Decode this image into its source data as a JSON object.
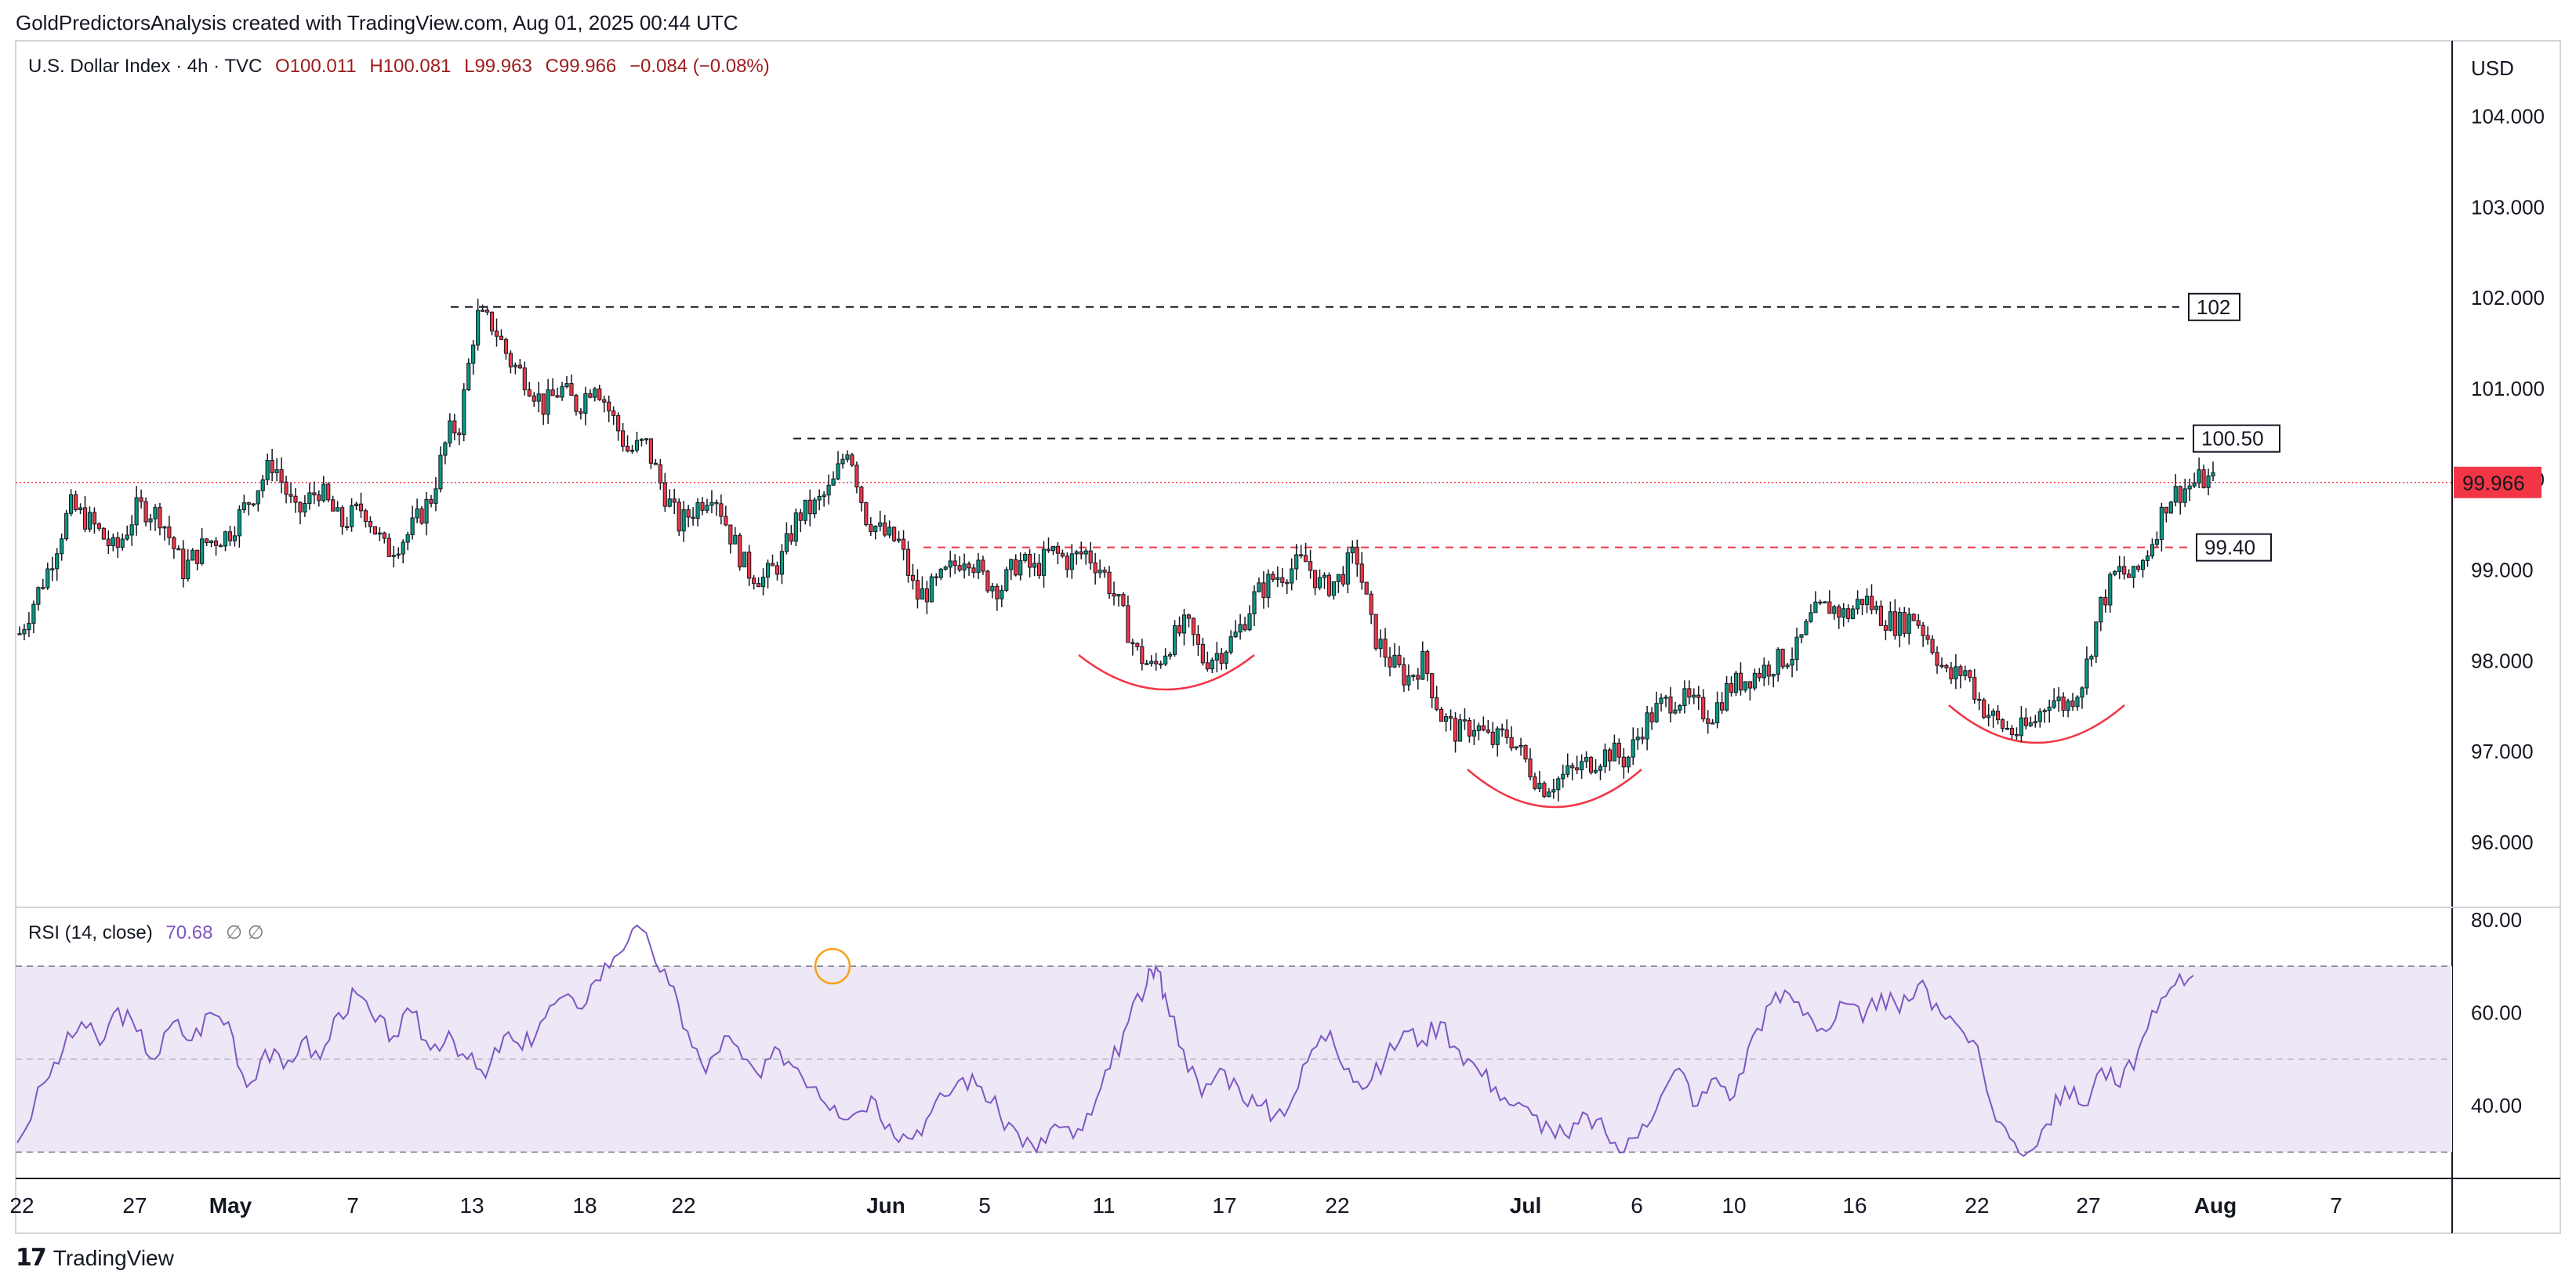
{
  "header": {
    "attribution": "GoldPredictorsAnalysis created with TradingView.com, Aug 01, 2025 00:44 UTC"
  },
  "footer": {
    "logo_mark": "17",
    "logo_name": "TradingView"
  },
  "chart_data": {
    "type": "candlestick",
    "symbol": "U.S. Dollar Index",
    "interval": "4h",
    "source": "TVC",
    "ohlc_label": {
      "o": "O100.011",
      "h": "H100.081",
      "l": "L99.963",
      "c": "C99.966",
      "chg": "−0.084 (−0.08%)"
    },
    "currency_label": "USD",
    "last_price": "99.966",
    "y_ticks": [
      "104.000",
      "103.000",
      "102.000",
      "101.000",
      "100.000",
      "99.000",
      "98.000",
      "97.000",
      "96.000"
    ],
    "ylim": [
      95.3,
      104.8
    ],
    "x_ticks": [
      "22",
      "27",
      "May",
      "7",
      "13",
      "18",
      "22",
      "Jun",
      "5",
      "11",
      "17",
      "22",
      "Jul",
      "6",
      "10",
      "16",
      "22",
      "27",
      "Aug",
      "7"
    ],
    "month_ticks": [
      "May",
      "Jun",
      "Jul",
      "Aug"
    ],
    "levels": [
      {
        "label": "102",
        "value": 101.9,
        "color": "#131722",
        "style": "dashed"
      },
      {
        "label": "100.50",
        "value": 100.45,
        "color": "#131722",
        "style": "dashed"
      },
      {
        "label": "99.40",
        "value": 99.25,
        "color": "#f23645",
        "style": "dashed"
      }
    ],
    "price_path": [
      [
        0,
        98.3
      ],
      [
        10,
        99.0
      ],
      [
        18,
        99.7
      ],
      [
        26,
        99.5
      ],
      [
        34,
        99.2
      ],
      [
        42,
        99.7
      ],
      [
        50,
        99.6
      ],
      [
        58,
        99.0
      ],
      [
        66,
        99.3
      ],
      [
        74,
        99.4
      ],
      [
        82,
        99.8
      ],
      [
        90,
        100.2
      ],
      [
        98,
        99.6
      ],
      [
        106,
        99.9
      ],
      [
        114,
        99.5
      ],
      [
        122,
        99.7
      ],
      [
        130,
        99.2
      ],
      [
        138,
        99.4
      ],
      [
        146,
        99.8
      ],
      [
        152,
        100.5
      ],
      [
        156,
        100.6
      ],
      [
        162,
        101.8
      ],
      [
        168,
        101.7
      ],
      [
        174,
        101.3
      ],
      [
        180,
        101.1
      ],
      [
        186,
        100.8
      ],
      [
        192,
        101.0
      ],
      [
        198,
        100.8
      ],
      [
        204,
        101.1
      ],
      [
        210,
        100.7
      ],
      [
        216,
        100.3
      ],
      [
        222,
        100.4
      ],
      [
        228,
        99.9
      ],
      [
        234,
        99.5
      ],
      [
        240,
        99.7
      ],
      [
        246,
        99.9
      ],
      [
        252,
        99.4
      ],
      [
        258,
        99.0
      ],
      [
        264,
        98.9
      ],
      [
        270,
        99.1
      ],
      [
        276,
        99.6
      ],
      [
        282,
        99.7
      ],
      [
        288,
        99.9
      ],
      [
        294,
        100.4
      ],
      [
        300,
        99.6
      ],
      [
        306,
        99.4
      ],
      [
        312,
        99.3
      ],
      [
        318,
        98.7
      ],
      [
        324,
        98.8
      ],
      [
        330,
        99.0
      ],
      [
        336,
        99.2
      ],
      [
        342,
        98.9
      ],
      [
        348,
        98.8
      ],
      [
        354,
        99.1
      ],
      [
        360,
        99.0
      ],
      [
        366,
        99.2
      ],
      [
        372,
        99.1
      ],
      [
        378,
        99.2
      ],
      [
        384,
        99.0
      ],
      [
        390,
        98.6
      ],
      [
        396,
        98.1
      ],
      [
        402,
        97.9
      ],
      [
        408,
        98.2
      ],
      [
        414,
        98.4
      ],
      [
        420,
        98.0
      ],
      [
        426,
        98.1
      ],
      [
        432,
        98.3
      ],
      [
        438,
        98.7
      ],
      [
        444,
        98.9
      ],
      [
        450,
        99.0
      ],
      [
        456,
        99.1
      ],
      [
        462,
        98.8
      ],
      [
        468,
        98.9
      ],
      [
        474,
        99.2
      ],
      [
        480,
        98.3
      ],
      [
        486,
        98.0
      ],
      [
        492,
        97.8
      ],
      [
        498,
        98.0
      ],
      [
        504,
        97.4
      ],
      [
        510,
        97.2
      ],
      [
        516,
        97.3
      ],
      [
        522,
        97.1
      ],
      [
        528,
        97.2
      ],
      [
        534,
        96.9
      ],
      [
        540,
        96.6
      ],
      [
        546,
        96.7
      ],
      [
        552,
        96.8
      ],
      [
        558,
        96.9
      ],
      [
        564,
        97.0
      ],
      [
        570,
        96.9
      ],
      [
        576,
        97.3
      ],
      [
        582,
        97.5
      ],
      [
        588,
        97.6
      ],
      [
        594,
        97.5
      ],
      [
        600,
        97.4
      ],
      [
        606,
        97.7
      ],
      [
        612,
        97.8
      ],
      [
        618,
        97.9
      ],
      [
        624,
        98.0
      ],
      [
        630,
        98.1
      ],
      [
        636,
        98.5
      ],
      [
        642,
        98.6
      ],
      [
        648,
        98.5
      ],
      [
        654,
        98.7
      ],
      [
        660,
        98.5
      ],
      [
        666,
        98.4
      ],
      [
        672,
        98.5
      ],
      [
        678,
        98.2
      ],
      [
        684,
        97.8
      ],
      [
        690,
        97.9
      ],
      [
        696,
        97.5
      ],
      [
        702,
        97.3
      ],
      [
        708,
        97.2
      ],
      [
        714,
        97.3
      ],
      [
        720,
        97.6
      ],
      [
        726,
        97.5
      ],
      [
        732,
        97.8
      ],
      [
        738,
        98.6
      ],
      [
        744,
        99.0
      ],
      [
        750,
        98.9
      ],
      [
        756,
        99.3
      ],
      [
        762,
        99.8
      ],
      [
        768,
        99.9
      ],
      [
        774,
        100.0
      ],
      [
        778,
        99.97
      ]
    ],
    "rsi": {
      "label": "RSI (14, close)",
      "value": "70.68",
      "extra": "∅ ∅",
      "y_ticks": [
        "80.00",
        "60.00",
        "40.00"
      ],
      "ylim": [
        25,
        82
      ],
      "upper_band": 70,
      "middle_band": 50,
      "lower_band": 30,
      "color": "#7e57c2",
      "band_fill": "#ede7f6",
      "values": [
        [
          0,
          32
        ],
        [
          6,
          45
        ],
        [
          10,
          52
        ],
        [
          14,
          58
        ],
        [
          18,
          53
        ],
        [
          22,
          61
        ],
        [
          26,
          56
        ],
        [
          30,
          50
        ],
        [
          34,
          58
        ],
        [
          38,
          54
        ],
        [
          42,
          60
        ],
        [
          46,
          58
        ],
        [
          50,
          44
        ],
        [
          54,
          52
        ],
        [
          58,
          48
        ],
        [
          62,
          54
        ],
        [
          66,
          50
        ],
        [
          70,
          60
        ],
        [
          74,
          64
        ],
        [
          78,
          58
        ],
        [
          82,
          55
        ],
        [
          86,
          60
        ],
        [
          90,
          52
        ],
        [
          94,
          56
        ],
        [
          98,
          50
        ],
        [
          102,
          46
        ],
        [
          106,
          55
        ],
        [
          110,
          52
        ],
        [
          114,
          58
        ],
        [
          118,
          63
        ],
        [
          122,
          61
        ],
        [
          126,
          67
        ],
        [
          130,
          72
        ],
        [
          134,
          78
        ],
        [
          138,
          74
        ],
        [
          142,
          66
        ],
        [
          146,
          56
        ],
        [
          150,
          47
        ],
        [
          154,
          55
        ],
        [
          158,
          50
        ],
        [
          162,
          46
        ],
        [
          166,
          52
        ],
        [
          170,
          48
        ],
        [
          174,
          44
        ],
        [
          178,
          40
        ],
        [
          182,
          38
        ],
        [
          186,
          42
        ],
        [
          190,
          36
        ],
        [
          194,
          33
        ],
        [
          198,
          37
        ],
        [
          202,
          42
        ],
        [
          206,
          46
        ],
        [
          210,
          44
        ],
        [
          214,
          38
        ],
        [
          218,
          34
        ],
        [
          222,
          30
        ],
        [
          226,
          36
        ],
        [
          230,
          33
        ],
        [
          234,
          38
        ],
        [
          238,
          48
        ],
        [
          242,
          58
        ],
        [
          246,
          66
        ],
        [
          248,
          70
        ],
        [
          250,
          64
        ],
        [
          254,
          52
        ],
        [
          258,
          42
        ],
        [
          262,
          48
        ],
        [
          266,
          44
        ],
        [
          270,
          40
        ],
        [
          274,
          38
        ],
        [
          278,
          42
        ],
        [
          282,
          52
        ],
        [
          286,
          56
        ],
        [
          290,
          48
        ],
        [
          294,
          44
        ],
        [
          298,
          50
        ],
        [
          302,
          56
        ],
        [
          306,
          54
        ],
        [
          310,
          58
        ],
        [
          314,
          52
        ],
        [
          318,
          48
        ],
        [
          322,
          44
        ],
        [
          326,
          40
        ],
        [
          330,
          38
        ],
        [
          334,
          35
        ],
        [
          338,
          33
        ],
        [
          342,
          38
        ],
        [
          346,
          34
        ],
        [
          350,
          30
        ],
        [
          354,
          36
        ],
        [
          358,
          42
        ],
        [
          362,
          48
        ],
        [
          366,
          40
        ],
        [
          370,
          46
        ],
        [
          374,
          42
        ],
        [
          378,
          55
        ],
        [
          382,
          62
        ],
        [
          386,
          64
        ],
        [
          390,
          60
        ],
        [
          394,
          56
        ],
        [
          398,
          62
        ],
        [
          402,
          58
        ],
        [
          406,
          64
        ],
        [
          410,
          60
        ],
        [
          414,
          66
        ],
        [
          418,
          62
        ],
        [
          422,
          58
        ],
        [
          426,
          54
        ],
        [
          430,
          40
        ],
        [
          434,
          33
        ],
        [
          438,
          30
        ],
        [
          442,
          36
        ],
        [
          446,
          44
        ],
        [
          450,
          40
        ],
        [
          454,
          48
        ],
        [
          458,
          44
        ],
        [
          462,
          52
        ],
        [
          466,
          60
        ],
        [
          470,
          66
        ],
        [
          474,
          68
        ]
      ]
    }
  }
}
